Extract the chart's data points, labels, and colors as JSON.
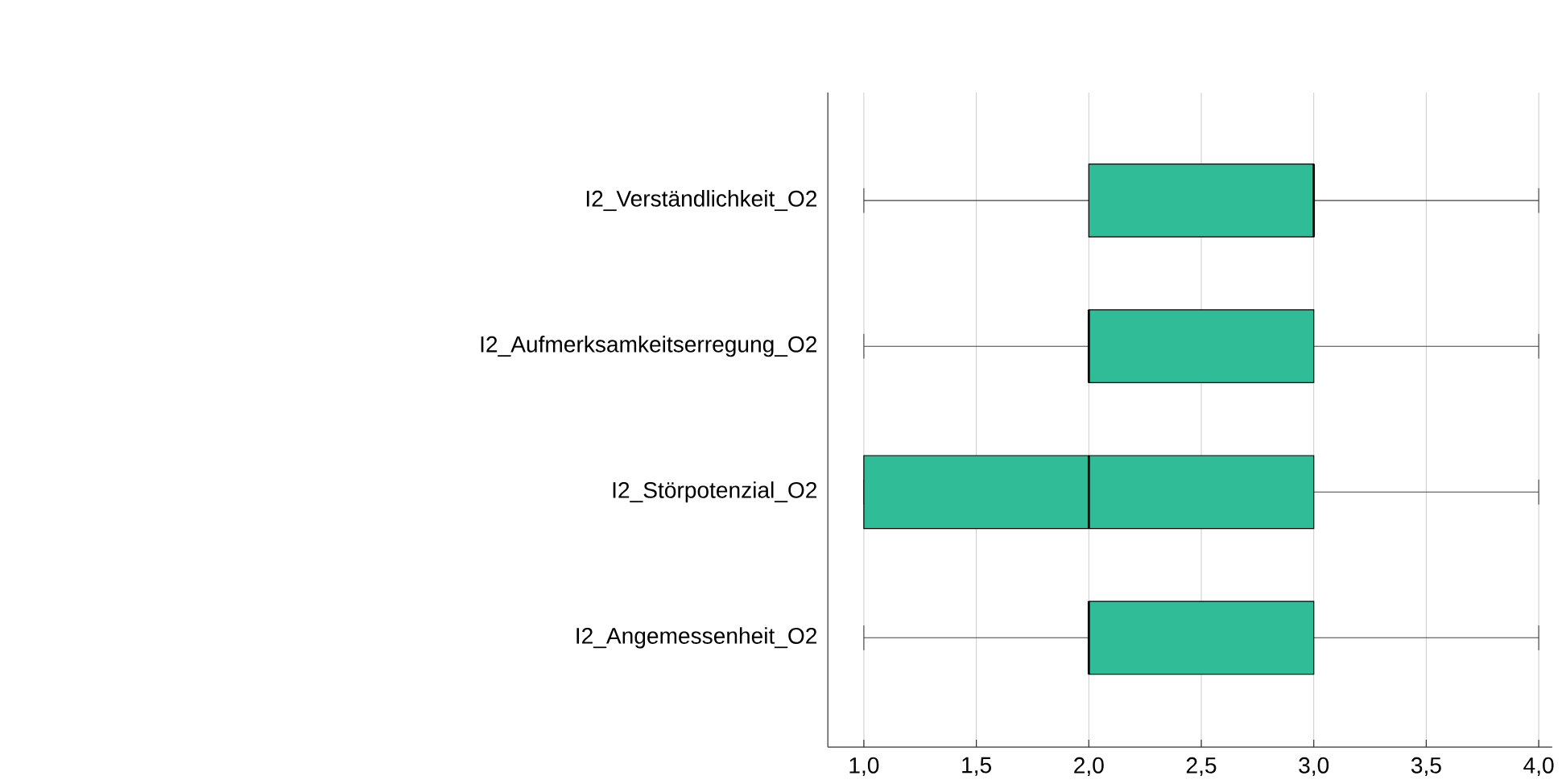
{
  "chart_data": {
    "type": "box",
    "orientation": "horizontal",
    "color": "#2fbc96",
    "categories": [
      "I2_Verständlichkeit_O2",
      "I2_Aufmerksamkeitserregung_O2",
      "I2_Störpotenzial_O2",
      "I2_Angemessenheit_O2"
    ],
    "boxes": [
      {
        "low": 1,
        "q1": 2,
        "median": 3,
        "q3": 3,
        "high": 4
      },
      {
        "low": 1,
        "q1": 2,
        "median": 2,
        "q3": 3,
        "high": 4
      },
      {
        "low": 1,
        "q1": 1,
        "median": 2,
        "q3": 3,
        "high": 4
      },
      {
        "low": 1,
        "q1": 2,
        "median": 2,
        "q3": 3,
        "high": 4
      }
    ],
    "xlim": [
      0.84,
      4.06
    ],
    "xticks": [
      {
        "value": 1,
        "label": "1,0"
      },
      {
        "value": 1.5,
        "label": "1,5"
      },
      {
        "value": 2,
        "label": "2,0"
      },
      {
        "value": 2.5,
        "label": "2,5"
      },
      {
        "value": 3,
        "label": "3,0"
      },
      {
        "value": 3.5,
        "label": "3,5"
      },
      {
        "value": 4,
        "label": "4,0"
      }
    ],
    "grid": "x"
  }
}
